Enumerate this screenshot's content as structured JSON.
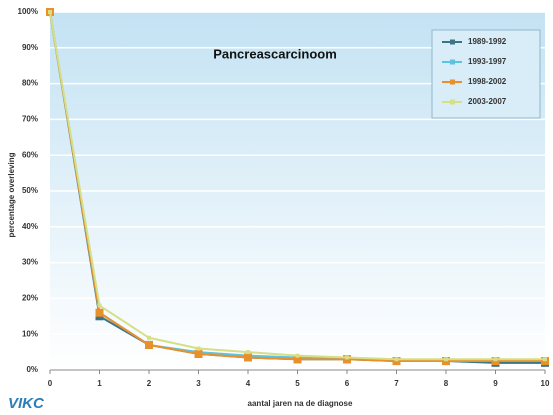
{
  "chart_data": {
    "type": "line",
    "title": "Pancreascarcinoom",
    "xlabel": "aantal jaren na de diagnose",
    "ylabel": "percentage overleving",
    "x": [
      0,
      1,
      2,
      3,
      4,
      5,
      6,
      7,
      8,
      9,
      10
    ],
    "xlim": [
      0,
      10
    ],
    "xticks": [
      0,
      1,
      2,
      3,
      4,
      5,
      6,
      7,
      8,
      9,
      10
    ],
    "ylim": [
      0,
      100
    ],
    "yticks": [
      {
        "value": 0,
        "label": "0%"
      },
      {
        "value": 10,
        "label": "10%"
      },
      {
        "value": 20,
        "label": "20%"
      },
      {
        "value": 30,
        "label": "30%"
      },
      {
        "value": 40,
        "label": "40%"
      },
      {
        "value": 50,
        "label": "50%"
      },
      {
        "value": 60,
        "label": "60%"
      },
      {
        "value": 70,
        "label": "70%"
      },
      {
        "value": 80,
        "label": "80%"
      },
      {
        "value": 90,
        "label": "90%"
      },
      {
        "value": 100,
        "label": "100%"
      }
    ],
    "grid": true,
    "legend": "upper right",
    "series": [
      {
        "name": "1989-1992",
        "color": "#3d7486",
        "values": [
          100,
          15,
          7,
          4.5,
          3.5,
          3,
          3,
          2.5,
          2.5,
          2,
          2
        ]
      },
      {
        "name": "1993-1997",
        "color": "#5cc3e0",
        "values": [
          100,
          16,
          7,
          5,
          4,
          3.5,
          3,
          3,
          2.5,
          2.5,
          2.5
        ]
      },
      {
        "name": "1998-2002",
        "color": "#e8902c",
        "values": [
          100,
          16,
          7,
          4.5,
          3.5,
          3,
          3,
          2.5,
          2.5,
          2.5,
          2.5
        ]
      },
      {
        "name": "2003-2007",
        "color": "#d6de86",
        "values": [
          100,
          18,
          9,
          6,
          5,
          4,
          3.5,
          3,
          3,
          3,
          3
        ]
      }
    ]
  },
  "logo": "VIKC"
}
